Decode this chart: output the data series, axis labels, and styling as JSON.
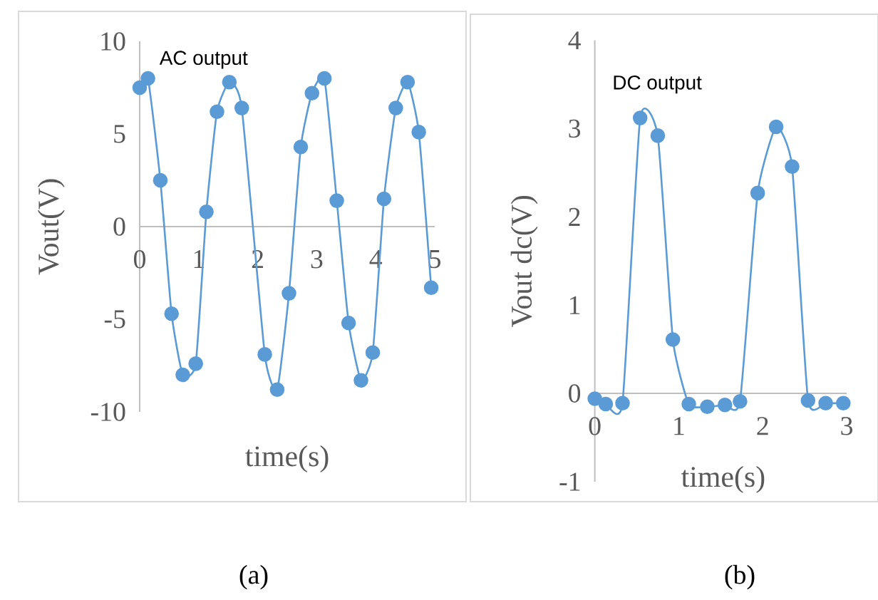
{
  "chart_data": [
    {
      "type": "line",
      "xlabel": "time(s)",
      "ylabel": "Vout(V)",
      "annotations": [
        "AC output",
        "(a)"
      ],
      "color": "#5b9bd5",
      "marker": "circle",
      "line_style": "solid",
      "x": [
        0,
        0.14,
        0.35,
        0.54,
        0.73,
        0.95,
        1.13,
        1.31,
        1.52,
        1.73,
        2.12,
        2.33,
        2.53,
        2.73,
        2.92,
        3.13,
        3.34,
        3.54,
        3.75,
        3.95,
        4.14,
        4.34,
        4.54,
        4.73,
        4.94
      ],
      "values": [
        7.5,
        8.0,
        2.5,
        -4.7,
        -8.0,
        -7.4,
        0.8,
        6.2,
        7.8,
        6.4,
        -6.9,
        -8.8,
        -3.6,
        4.3,
        7.2,
        8.0,
        1.4,
        -5.2,
        -8.3,
        -6.8,
        1.5,
        6.4,
        7.8,
        5.1,
        -3.3
      ],
      "xlim": [
        0,
        5
      ],
      "ylim": [
        -10,
        10
      ],
      "xticks": [
        0,
        1,
        2,
        3,
        4,
        5
      ],
      "yticks": [
        -10,
        -5,
        0,
        5,
        10
      ]
    },
    {
      "type": "line",
      "xlabel": "time(s)",
      "ylabel": "Vout dc(V)",
      "annotations": [
        "DC output",
        "(b)"
      ],
      "color": "#5b9bd5",
      "marker": "circle",
      "line_style": "solid",
      "x": [
        0,
        0.13,
        0.33,
        0.54,
        0.75,
        0.93,
        1.12,
        1.34,
        1.55,
        1.73,
        1.94,
        2.16,
        2.35,
        2.54,
        2.75,
        2.96
      ],
      "values": [
        -0.06,
        -0.12,
        -0.11,
        3.12,
        2.92,
        0.61,
        -0.12,
        -0.15,
        -0.13,
        -0.09,
        2.27,
        3.02,
        2.57,
        -0.08,
        -0.11,
        -0.11
      ],
      "xlim": [
        0,
        3
      ],
      "ylim": [
        -1,
        4
      ],
      "xticks": [
        0,
        1,
        2,
        3
      ],
      "yticks": [
        -1,
        0,
        1,
        2,
        3,
        4
      ]
    }
  ]
}
